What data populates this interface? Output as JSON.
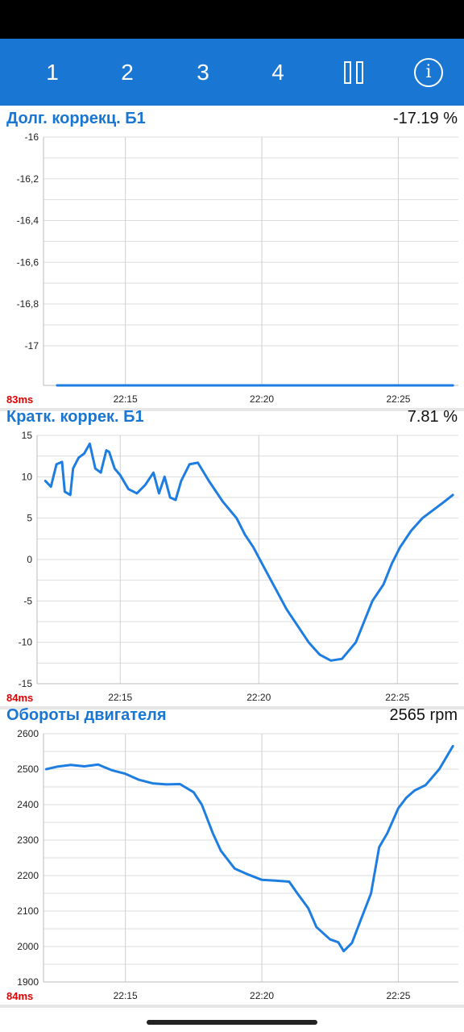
{
  "toolbar": {
    "buttons": [
      "1",
      "2",
      "3",
      "4"
    ],
    "pause_icon": "pause-icon",
    "info_icon": "info-icon"
  },
  "colors": {
    "toolbar": "#1976d2",
    "line": "#1e7de0",
    "title": "#1976d2",
    "latency": "#e00000",
    "grid": "#cccccc"
  },
  "panels": [
    {
      "title": "Долг. коррекц. Б1",
      "value": "-17.19  %",
      "latency": "83ms"
    },
    {
      "title": "Кратк. коррек. Б1",
      "value": "7.81  %",
      "latency": "84ms"
    },
    {
      "title": "Обороты двигателя",
      "value": "2565  rpm",
      "latency": "84ms"
    }
  ],
  "chart_data": [
    {
      "type": "line",
      "title": "Долг. коррекц. Б1",
      "xlabel": "",
      "ylabel": "",
      "ylim": [
        -17.19,
        -16
      ],
      "yticks": [
        -16,
        -16.2,
        -16.4,
        -16.6,
        -16.8,
        -17
      ],
      "ytick_labels": [
        "-16",
        "-16,2",
        "-16,4",
        "-16,6",
        "-16,8",
        "-17"
      ],
      "xticks": [
        "22:15",
        "22:20",
        "22:25"
      ],
      "grid": true,
      "series": [
        {
          "x": [
            "22:12.5",
            "22:27"
          ],
          "y": [
            -17.19,
            -17.19
          ]
        }
      ]
    },
    {
      "type": "line",
      "title": "Кратк. коррек. Б1",
      "xlabel": "",
      "ylabel": "",
      "ylim": [
        -15,
        15
      ],
      "yticks": [
        15,
        10,
        5,
        0,
        -5,
        -10,
        -15
      ],
      "ytick_labels": [
        "15",
        "10",
        "5",
        "0",
        "-5",
        "-10",
        "-15"
      ],
      "xticks": [
        "22:15",
        "22:20",
        "22:25"
      ],
      "grid": true,
      "series": [
        {
          "x": [
            "22:12.3",
            "22:12.5",
            "22:12.7",
            "22:12.9",
            "22:13.0",
            "22:13.2",
            "22:13.3",
            "22:13.5",
            "22:13.7",
            "22:13.9",
            "22:14.1",
            "22:14.3",
            "22:14.5",
            "22:14.6",
            "22:14.8",
            "22:15.0",
            "22:15.3",
            "22:15.6",
            "22:15.9",
            "22:16.2",
            "22:16.4",
            "22:16.6",
            "22:16.8",
            "22:17.0",
            "22:17.2",
            "22:17.5",
            "22:17.8",
            "22:18.2",
            "22:18.7",
            "22:19.2",
            "22:19.5",
            "22:19.8",
            "22:20.2",
            "22:20.6",
            "22:21.0",
            "22:21.4",
            "22:21.8",
            "22:22.2",
            "22:22.6",
            "22:23.0",
            "22:23.5",
            "22:23.8",
            "22:24.1",
            "22:24.5",
            "22:24.8",
            "22:25.1",
            "22:25.5",
            "22:25.9",
            "22:26.3",
            "22:26.7",
            "22:27.0"
          ],
          "y": [
            9.5,
            8.8,
            11.5,
            11.8,
            8.2,
            7.8,
            11.0,
            12.3,
            12.8,
            14.0,
            11.0,
            10.5,
            13.2,
            13.0,
            11.0,
            10.2,
            8.5,
            8.0,
            9.0,
            10.5,
            8.0,
            10.0,
            7.5,
            7.2,
            9.5,
            11.5,
            11.7,
            9.5,
            7.0,
            5.0,
            3.0,
            1.5,
            -1.0,
            -3.5,
            -6.0,
            -8.0,
            -10.0,
            -11.5,
            -12.2,
            -12.0,
            -10.0,
            -7.5,
            -5.0,
            -3.0,
            -0.5,
            1.5,
            3.5,
            5.0,
            6.0,
            7.0,
            7.8
          ]
        }
      ]
    },
    {
      "type": "line",
      "title": "Обороты двигателя",
      "xlabel": "",
      "ylabel": "",
      "ylim": [
        1900,
        2600
      ],
      "yticks": [
        2600,
        2500,
        2400,
        2300,
        2200,
        2100,
        2000,
        1900
      ],
      "ytick_labels": [
        "2600",
        "2500",
        "2400",
        "2300",
        "2200",
        "2100",
        "2000",
        "1900"
      ],
      "xticks": [
        "22:15",
        "22:20",
        "22:25"
      ],
      "grid": true,
      "series": [
        {
          "x": [
            "22:12.1",
            "22:12.5",
            "22:13.0",
            "22:13.5",
            "22:14.0",
            "22:14.5",
            "22:15.0",
            "22:15.5",
            "22:16.0",
            "22:16.5",
            "22:17.0",
            "22:17.5",
            "22:17.8",
            "22:18.2",
            "22:18.5",
            "22:19.0",
            "22:19.5",
            "22:20.0",
            "22:20.5",
            "22:21.0",
            "22:21.3",
            "22:21.7",
            "22:22.0",
            "22:22.5",
            "22:22.8",
            "22:23.0",
            "22:23.3",
            "22:23.6",
            "22:24.0",
            "22:24.3",
            "22:24.6",
            "22:25.0",
            "22:25.3",
            "22:25.6",
            "22:26.0",
            "22:26.5",
            "22:27.0"
          ],
          "y": [
            2500,
            2507,
            2512,
            2508,
            2513,
            2497,
            2487,
            2470,
            2460,
            2457,
            2458,
            2435,
            2400,
            2320,
            2270,
            2220,
            2203,
            2188,
            2186,
            2183,
            2150,
            2108,
            2055,
            2020,
            2012,
            1987,
            2010,
            2070,
            2150,
            2280,
            2320,
            2390,
            2420,
            2440,
            2455,
            2500,
            2565
          ]
        }
      ]
    }
  ]
}
